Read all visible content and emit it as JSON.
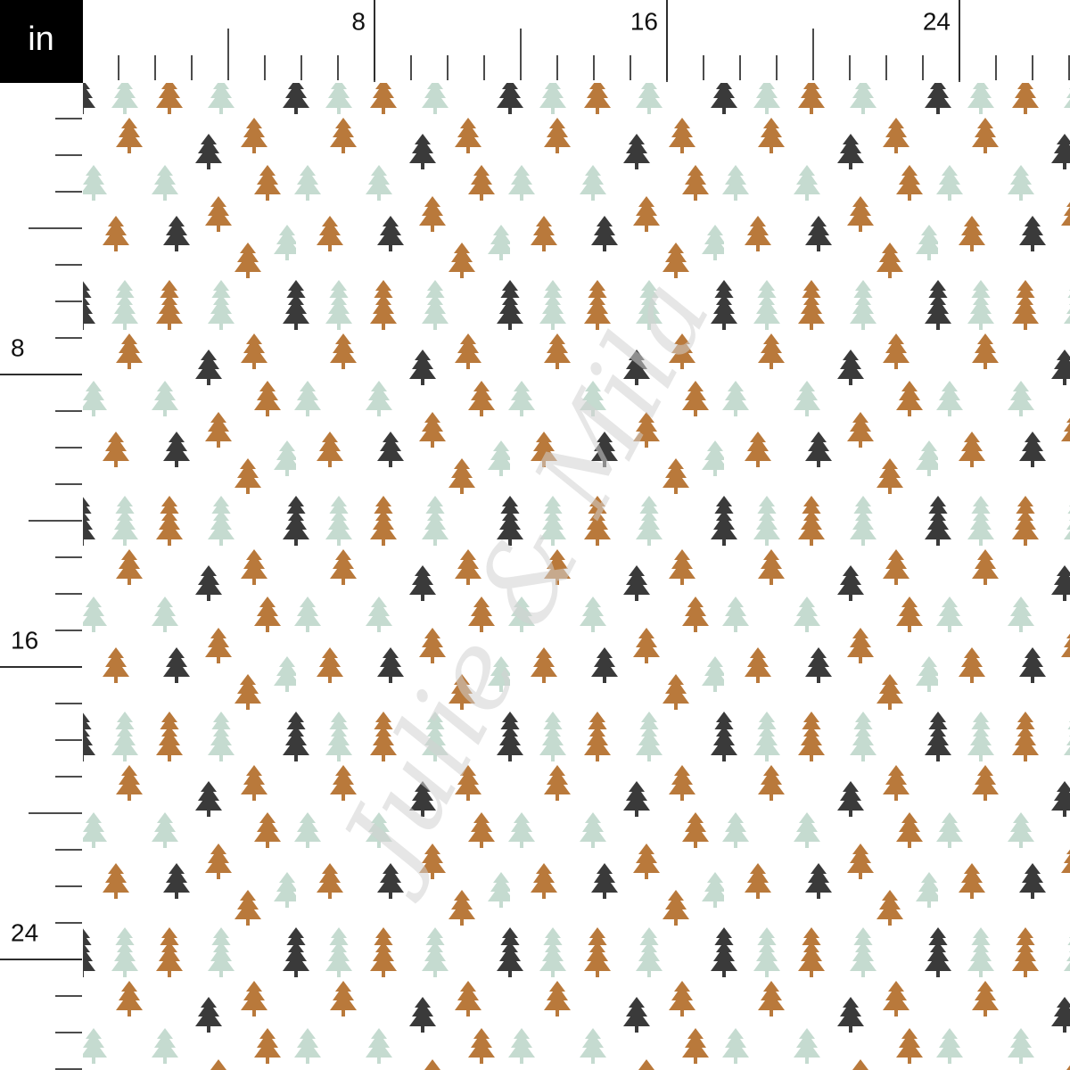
{
  "unit": "in",
  "top_ruler": {
    "labels": [
      8,
      16,
      24
    ]
  },
  "left_ruler": {
    "labels": [
      8,
      16,
      24
    ]
  },
  "watermark": "Julie & Mila"
}
